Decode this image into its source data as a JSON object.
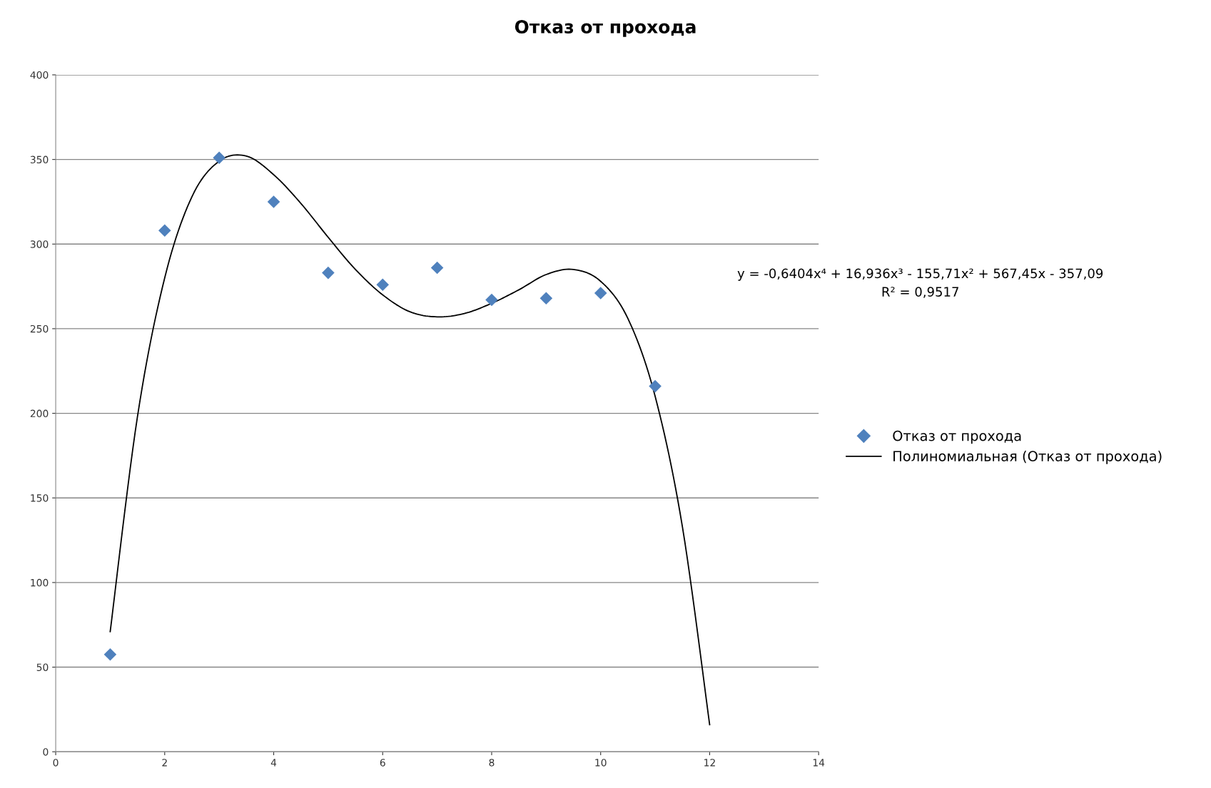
{
  "chart_data": {
    "type": "scatter",
    "title": "Отказ от прохода",
    "x": [
      1,
      2,
      3,
      4,
      5,
      6,
      7,
      8,
      9,
      10,
      11
    ],
    "series": [
      {
        "name": "Отказ от прохода",
        "color": "#4f81bd",
        "marker": "diamond",
        "values": [
          57.5,
          308,
          351,
          325,
          283,
          276,
          286,
          267,
          268,
          271,
          216
        ]
      },
      {
        "name": "Полиномиальная (Отказ от прохода)",
        "type": "line",
        "color": "#000000",
        "marker": "none",
        "line_style": "solid",
        "x": [
          1,
          1.5,
          2,
          2.5,
          3,
          3.5,
          4,
          4.5,
          5,
          5.5,
          6,
          6.5,
          7,
          7.5,
          8,
          8.5,
          9,
          9.5,
          10,
          10.5,
          11,
          11.5,
          12
        ],
        "values": [
          71,
          198,
          280,
          328,
          349,
          352,
          341,
          324,
          304,
          285,
          270,
          260,
          257,
          259,
          265,
          273,
          282,
          285,
          278,
          256,
          210,
          133,
          16
        ]
      }
    ],
    "annotations": [
      "y = -0,6404x⁴ + 16,936x³ - 155,71x² + 567,45x - 357,09",
      "R² = 0,9517"
    ],
    "xlim": [
      0,
      14
    ],
    "xticks": [
      0,
      2,
      4,
      6,
      8,
      10,
      12,
      14
    ],
    "ylim": [
      0,
      400
    ],
    "yticks": [
      0,
      50,
      100,
      150,
      200,
      250,
      300,
      350,
      400
    ],
    "grid": "y",
    "legend": "right"
  }
}
